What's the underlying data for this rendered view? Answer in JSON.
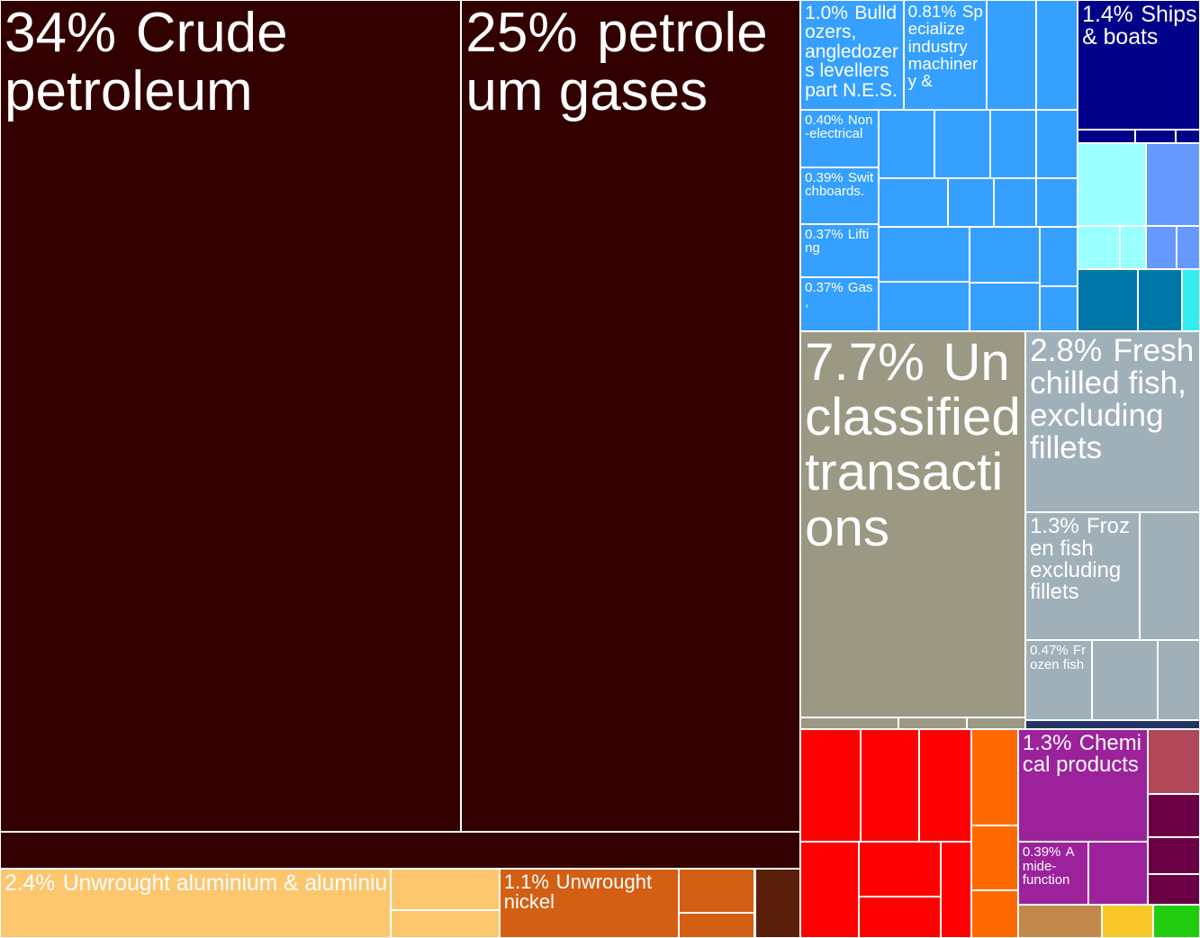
{
  "chart_data": {
    "type": "treemap",
    "groups": [
      {
        "color": "#330000",
        "items": [
          {
            "name": "Crude petroleum",
            "value": 34,
            "value_label": "34%"
          },
          {
            "name": "petroleum gases",
            "value": 25,
            "value_label": "25%"
          },
          {
            "name": null,
            "value": 2.6
          }
        ]
      },
      {
        "color": "#fcc66f",
        "items": [
          {
            "name": "Unwrought aluminium & aluminiu",
            "value": 2.4,
            "value_label": "2.4%"
          },
          {
            "name": null,
            "value": 0.4
          },
          {
            "name": null,
            "value": 0.27
          }
        ]
      },
      {
        "color": "#d35f14",
        "items": [
          {
            "name": "Unwrought nickel",
            "value": 1.1,
            "value_label": "1.1%"
          },
          {
            "name": null,
            "value": 0.3
          },
          {
            "name": null,
            "value": 0.17
          }
        ]
      },
      {
        "color": "#5a1f0a",
        "items": [
          {
            "name": null,
            "value": 0.28
          }
        ]
      },
      {
        "color": "#35a0ff",
        "items": [
          {
            "name": "Bulldozers, angledozers levellers part N.E.S.",
            "value": 1.0,
            "value_label": "1.0%"
          },
          {
            "name": "Specialize industry machinery &",
            "value": 0.81,
            "value_label": "0.81%"
          },
          {
            "name": null,
            "value": 0.48
          },
          {
            "name": null,
            "value": 0.4
          },
          {
            "name": "Non-electrical",
            "value": 0.4,
            "value_label": "0.40%"
          },
          {
            "name": "Switchboards.",
            "value": 0.39,
            "value_label": "0.39%"
          },
          {
            "name": "Lifting",
            "value": 0.37,
            "value_label": "0.37%"
          },
          {
            "name": "Gas,",
            "value": 0.37,
            "value_label": "0.37%"
          },
          {
            "name": null,
            "value": 0.34
          },
          {
            "name": null,
            "value": 0.34
          },
          {
            "name": null,
            "value": 0.28
          },
          {
            "name": null,
            "value": 0.25
          },
          {
            "name": null,
            "value": 0.3
          },
          {
            "name": null,
            "value": 0.2
          },
          {
            "name": null,
            "value": 0.18
          },
          {
            "name": null,
            "value": 0.18
          },
          {
            "name": null,
            "value": 0.45
          },
          {
            "name": null,
            "value": 0.4
          },
          {
            "name": null,
            "value": 0.35
          },
          {
            "name": null,
            "value": 0.3
          },
          {
            "name": null,
            "value": 0.2
          },
          {
            "name": null,
            "value": 0.15
          }
        ]
      },
      {
        "color": "#000088",
        "items": [
          {
            "name": "Ships & boats",
            "value": 1.4,
            "value_label": "1.4%"
          },
          {
            "name": null,
            "value": 0.07
          },
          {
            "name": null,
            "value": 0.05
          },
          {
            "name": null,
            "value": 0.03
          }
        ]
      },
      {
        "color": "#99ffff",
        "items": [
          {
            "name": null,
            "value": 0.5
          },
          {
            "name": null,
            "value": 0.16
          },
          {
            "name": null,
            "value": 0.1
          }
        ]
      },
      {
        "color": "#6699ff",
        "items": [
          {
            "name": null,
            "value": 0.4
          },
          {
            "name": null,
            "value": 0.12
          },
          {
            "name": null,
            "value": 0.09
          }
        ]
      },
      {
        "color": "#0077a8",
        "items": [
          {
            "name": null,
            "value": 0.33
          },
          {
            "name": null,
            "value": 0.24
          }
        ]
      },
      {
        "color": "#33eeee",
        "items": [
          {
            "name": null,
            "value": 0.1
          }
        ]
      },
      {
        "color": "#9b9884",
        "items": [
          {
            "name": "Unclassified transactions",
            "value": 7.7,
            "value_label": "7.7%"
          },
          {
            "name": null,
            "value": 0.1
          },
          {
            "name": null,
            "value": 0.07
          },
          {
            "name": null,
            "value": 0.06
          }
        ]
      },
      {
        "color": "#a0b0b9",
        "items": [
          {
            "name": "Fresh chilled fish, excluding fillets",
            "value": 2.8,
            "value_label": "2.8%"
          },
          {
            "name": "Frozen fish excluding fillets",
            "value": 1.3,
            "value_label": "1.3%"
          },
          {
            "name": null,
            "value": 0.68
          },
          {
            "name": "Frozen fish",
            "value": 0.47,
            "value_label": "0.47%"
          },
          {
            "name": null,
            "value": 0.46
          },
          {
            "name": null,
            "value": 0.3
          }
        ]
      },
      {
        "color": "#223366",
        "items": [
          {
            "name": null,
            "value": 0.14
          }
        ]
      },
      {
        "color": "#ff0000",
        "items": [
          {
            "name": null,
            "value": 0.6
          },
          {
            "name": null,
            "value": 0.58
          },
          {
            "name": null,
            "value": 0.52
          },
          {
            "name": null,
            "value": 0.5
          },
          {
            "name": null,
            "value": 0.4
          },
          {
            "name": null,
            "value": 0.3
          },
          {
            "name": null,
            "value": 0.26
          }
        ]
      },
      {
        "color": "#ff6a00",
        "items": [
          {
            "name": null,
            "value": 0.4
          },
          {
            "name": null,
            "value": 0.27
          },
          {
            "name": null,
            "value": 0.2
          }
        ]
      },
      {
        "color": "#9c229c",
        "items": [
          {
            "name": "Chemical products",
            "value": 1.3,
            "value_label": "1.3%"
          },
          {
            "name": "Amide-function",
            "value": 0.39,
            "value_label": "0.39%"
          },
          {
            "name": null,
            "value": 0.33
          }
        ]
      },
      {
        "color": "#b0485a",
        "items": [
          {
            "name": null,
            "value": 0.3
          }
        ]
      },
      {
        "color": "#6a0044",
        "items": [
          {
            "name": null,
            "value": 0.2
          },
          {
            "name": null,
            "value": 0.17
          },
          {
            "name": null,
            "value": 0.14
          }
        ]
      },
      {
        "color": "#c0884a",
        "items": [
          {
            "name": null,
            "value": 0.25
          }
        ]
      },
      {
        "color": "#f8c828",
        "items": [
          {
            "name": null,
            "value": 0.15
          }
        ]
      },
      {
        "color": "#22cc11",
        "items": [
          {
            "name": null,
            "value": 0.14
          }
        ]
      }
    ]
  }
}
